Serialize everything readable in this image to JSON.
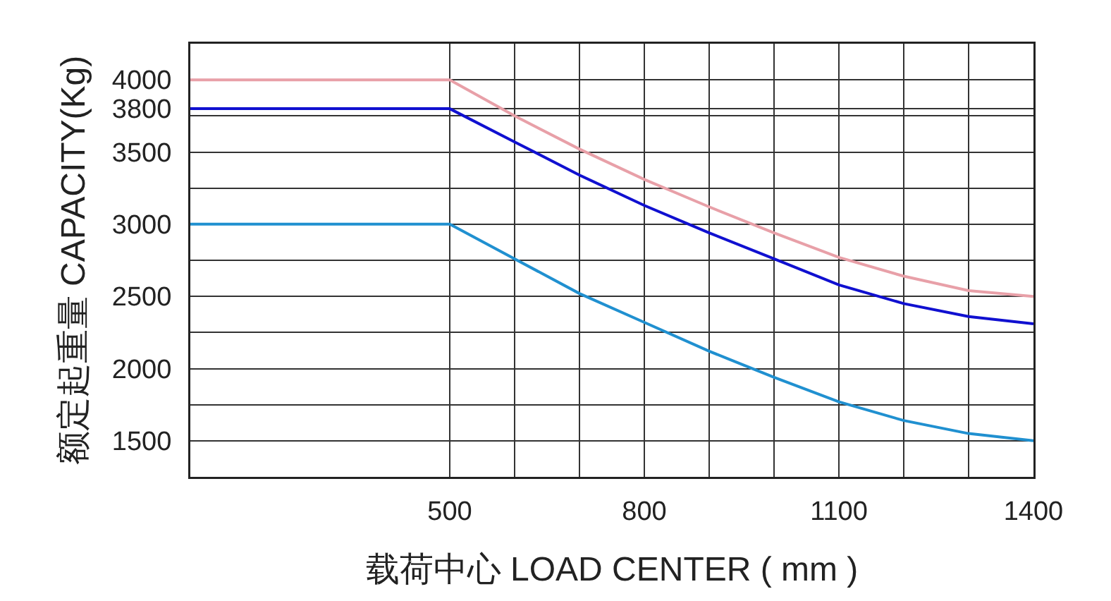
{
  "chart_data": {
    "type": "line",
    "xlabel": "载荷中心 LOAD CENTER ( mm )",
    "ylabel": "额定起重量 CAPACITY(Kg)",
    "x": [
      100,
      500,
      600,
      700,
      800,
      900,
      1000,
      1100,
      1200,
      1300,
      1400
    ],
    "series": [
      {
        "color": "#e8a0a8",
        "values": [
          4000,
          4000,
          3750,
          3520,
          3310,
          3120,
          2940,
          2770,
          2640,
          2540,
          2500
        ]
      },
      {
        "color": "#1010d0",
        "values": [
          3800,
          3800,
          3570,
          3340,
          3130,
          2940,
          2760,
          2580,
          2450,
          2360,
          2310
        ]
      },
      {
        "color": "#2090d0",
        "values": [
          3000,
          3000,
          2760,
          2520,
          2320,
          2120,
          1940,
          1770,
          1640,
          1550,
          1500
        ]
      }
    ],
    "xlim": [
      100,
      1400
    ],
    "ylim": [
      1250,
      4250
    ],
    "xticks": [
      500,
      {
        "value": 600,
        "label": null
      },
      {
        "value": 700,
        "label": null
      },
      800,
      {
        "value": 900,
        "label": null
      },
      {
        "value": 1000,
        "label": null
      },
      1100,
      {
        "value": 1200,
        "label": null
      },
      {
        "value": 1300,
        "label": null
      },
      1400
    ],
    "yticks": [
      1500,
      {
        "value": 1750,
        "label": null
      },
      2000,
      {
        "value": 2250,
        "label": null
      },
      2500,
      {
        "value": 2750,
        "label": null
      },
      3000,
      {
        "value": 3250,
        "label": null
      },
      3500,
      {
        "value": 3750,
        "label": null
      },
      3800,
      4000
    ],
    "grid": true,
    "marker": "none",
    "line_style": "solid"
  }
}
